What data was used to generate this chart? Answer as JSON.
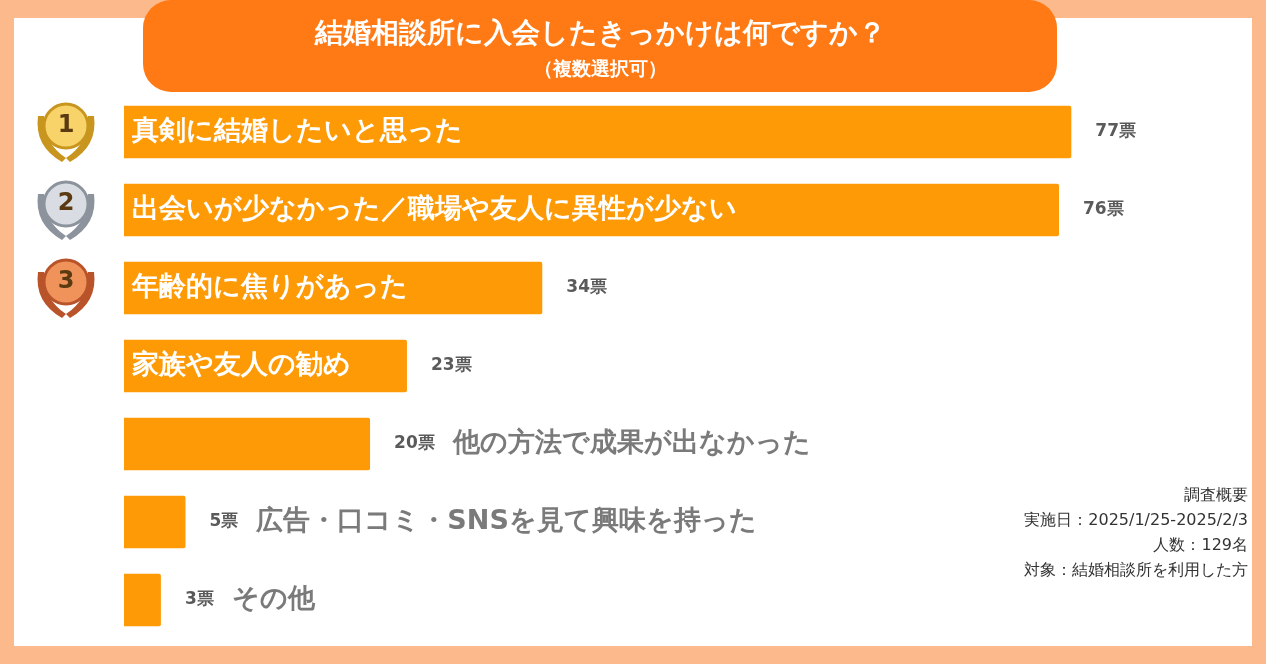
{
  "chart_data": {
    "type": "bar",
    "orientation": "horizontal",
    "title": "結婚相談所に入会したきっかけは何ですか？",
    "subtitle": "（複数選択可）",
    "categories": [
      "真剣に結婚したいと思った",
      "出会いが少なかった／職場や友人に異性が少ない",
      "年齢的に焦りがあった",
      "家族や友人の勧め",
      "他の方法で成果が出なかった",
      "広告・口コミ・SNSを見て興味を持った",
      "その他"
    ],
    "values": [
      77,
      76,
      34,
      23,
      20,
      5,
      3
    ],
    "value_labels": [
      "77票",
      "76票",
      "34票",
      "23票",
      "20票",
      "5票",
      "3票"
    ],
    "color": "#fe9a06",
    "annotations": [
      "1",
      "2",
      "3",
      "調査概要",
      "実施日：2025/1/25-2025/2/3",
      "人数：129名",
      "対象：結婚相談所を利用した方"
    ]
  }
}
